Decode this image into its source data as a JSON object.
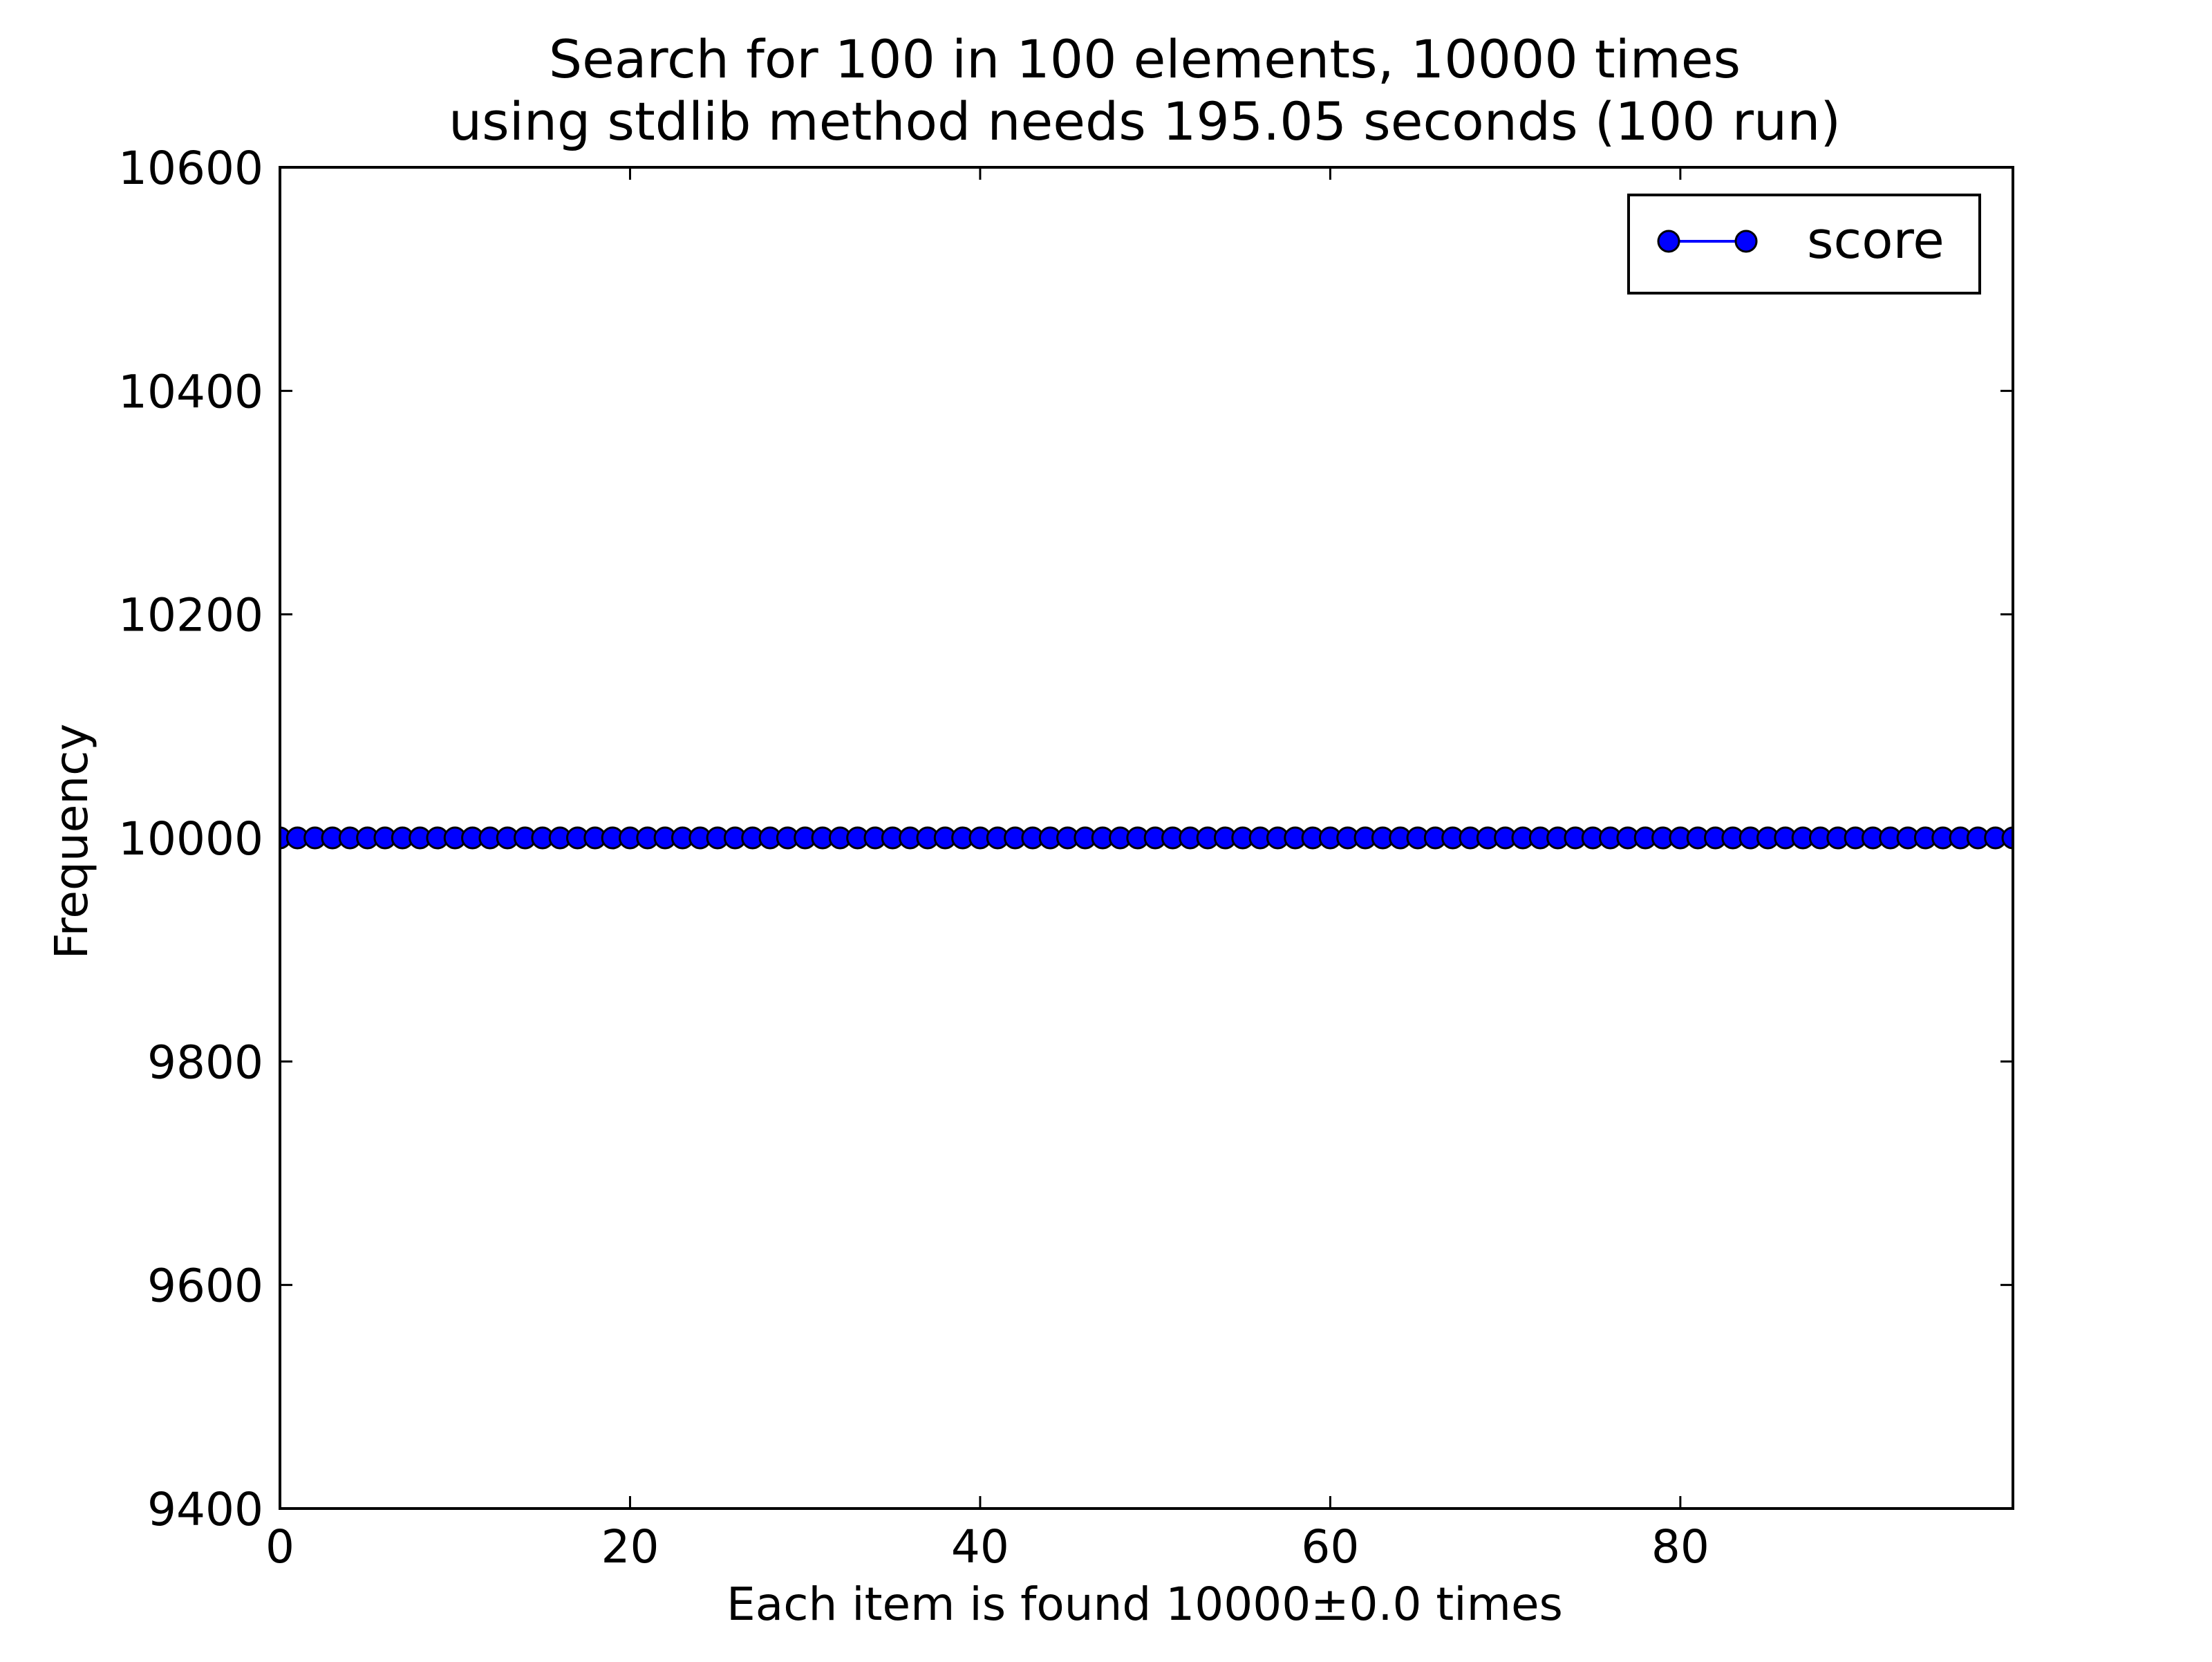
{
  "chart_data": {
    "type": "line",
    "title": "Search for 100 in 100 elements, 10000 times",
    "subtitle": "using stdlib method needs 195.05 seconds (100 run)",
    "xlabel": "Each item is found 10000±0.0 times",
    "ylabel": "Frequency",
    "xlim": [
      0,
      99
    ],
    "ylim": [
      9400,
      10600
    ],
    "x_ticks": [
      0,
      20,
      40,
      60,
      80
    ],
    "x_tick_labels": [
      "0",
      "20",
      "40",
      "60",
      "80"
    ],
    "y_ticks": [
      9400,
      9600,
      9800,
      10000,
      10200,
      10400,
      10600
    ],
    "y_tick_labels": [
      "9400",
      "9600",
      "9800",
      "10000",
      "10200",
      "10400",
      "10600"
    ],
    "grid": false,
    "legend_position": "top-right",
    "series": [
      {
        "name": "score",
        "color": "#0000ff",
        "marker": "circle",
        "x": [
          0,
          1,
          2,
          3,
          4,
          5,
          6,
          7,
          8,
          9,
          10,
          11,
          12,
          13,
          14,
          15,
          16,
          17,
          18,
          19,
          20,
          21,
          22,
          23,
          24,
          25,
          26,
          27,
          28,
          29,
          30,
          31,
          32,
          33,
          34,
          35,
          36,
          37,
          38,
          39,
          40,
          41,
          42,
          43,
          44,
          45,
          46,
          47,
          48,
          49,
          50,
          51,
          52,
          53,
          54,
          55,
          56,
          57,
          58,
          59,
          60,
          61,
          62,
          63,
          64,
          65,
          66,
          67,
          68,
          69,
          70,
          71,
          72,
          73,
          74,
          75,
          76,
          77,
          78,
          79,
          80,
          81,
          82,
          83,
          84,
          85,
          86,
          87,
          88,
          89,
          90,
          91,
          92,
          93,
          94,
          95,
          96,
          97,
          98,
          99
        ],
        "y": [
          10000,
          10000,
          10000,
          10000,
          10000,
          10000,
          10000,
          10000,
          10000,
          10000,
          10000,
          10000,
          10000,
          10000,
          10000,
          10000,
          10000,
          10000,
          10000,
          10000,
          10000,
          10000,
          10000,
          10000,
          10000,
          10000,
          10000,
          10000,
          10000,
          10000,
          10000,
          10000,
          10000,
          10000,
          10000,
          10000,
          10000,
          10000,
          10000,
          10000,
          10000,
          10000,
          10000,
          10000,
          10000,
          10000,
          10000,
          10000,
          10000,
          10000,
          10000,
          10000,
          10000,
          10000,
          10000,
          10000,
          10000,
          10000,
          10000,
          10000,
          10000,
          10000,
          10000,
          10000,
          10000,
          10000,
          10000,
          10000,
          10000,
          10000,
          10000,
          10000,
          10000,
          10000,
          10000,
          10000,
          10000,
          10000,
          10000,
          10000,
          10000,
          10000,
          10000,
          10000,
          10000,
          10000,
          10000,
          10000,
          10000,
          10000,
          10000,
          10000,
          10000,
          10000,
          10000,
          10000,
          10000,
          10000,
          10000,
          10000
        ]
      }
    ]
  }
}
